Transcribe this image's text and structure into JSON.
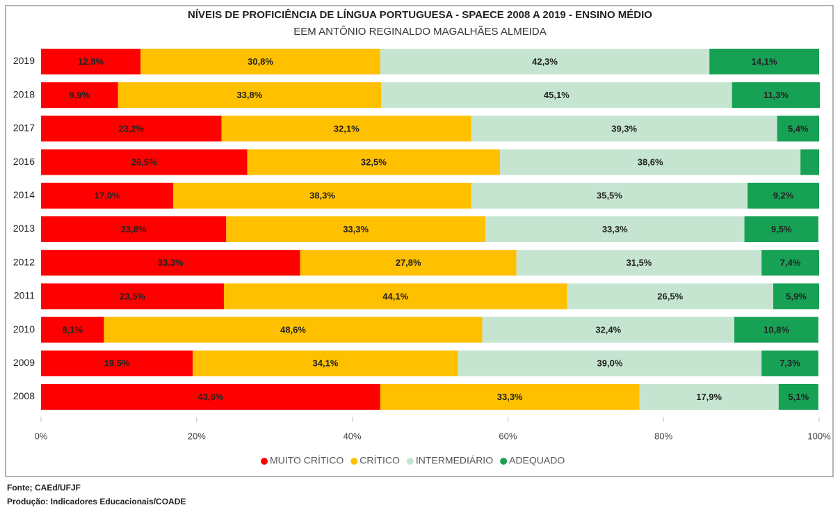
{
  "chart_data": {
    "type": "stacked-bar-horizontal",
    "title": "NÍVEIS DE PROFICIÊNCIA DE LÍNGUA PORTUGUESA - SPAECE 2008 A 2019 - ENSINO MÉDIO",
    "subtitle": "EEM ANTÔNIO REGINALDO MAGALHÃES ALMEIDA",
    "categories": [
      "2019",
      "2018",
      "2017",
      "2016",
      "2014",
      "2013",
      "2012",
      "2011",
      "2010",
      "2009",
      "2008"
    ],
    "series": [
      {
        "name": "MUITO CRÍTICO",
        "color": "#ff0000",
        "values": [
          12.8,
          9.9,
          23.2,
          26.5,
          17.0,
          23.8,
          33.3,
          23.5,
          8.1,
          19.5,
          43.6
        ],
        "value_labels": [
          "12,8%",
          "9,9%",
          "23,2%",
          "26,5%",
          "17,0%",
          "23,8%",
          "33,3%",
          "23,5%",
          "8,1%",
          "19,5%",
          "43,6%"
        ]
      },
      {
        "name": "CRÍTICO",
        "color": "#ffc000",
        "values": [
          30.8,
          33.8,
          32.1,
          32.5,
          38.3,
          33.3,
          27.8,
          44.1,
          48.6,
          34.1,
          33.3
        ],
        "value_labels": [
          "30,8%",
          "33,8%",
          "32,1%",
          "32,5%",
          "38,3%",
          "33,3%",
          "27,8%",
          "44,1%",
          "48,6%",
          "34,1%",
          "33,3%"
        ]
      },
      {
        "name": "INTERMEDIÁRIO",
        "color": "#c5e5d1",
        "values": [
          42.3,
          45.1,
          39.3,
          38.6,
          35.5,
          33.3,
          31.5,
          26.5,
          32.4,
          39.0,
          17.9
        ],
        "value_labels": [
          "42,3%",
          "45,1%",
          "39,3%",
          "38,6%",
          "35,5%",
          "33,3%",
          "31,5%",
          "26,5%",
          "32,4%",
          "39,0%",
          "17,9%"
        ]
      },
      {
        "name": "ADEQUADO",
        "color": "#17a155",
        "values": [
          14.1,
          11.3,
          5.4,
          2.4,
          9.2,
          9.5,
          7.4,
          5.9,
          10.8,
          7.3,
          5.1
        ],
        "value_labels": [
          "14,1%",
          "11,3%",
          "5,4%",
          null,
          "9,2%",
          "9,5%",
          "7,4%",
          "5,9%",
          "10,8%",
          "7,3%",
          "5,1%"
        ]
      }
    ],
    "xlim": [
      0,
      100
    ],
    "xticks": [
      {
        "value": 0,
        "label": "0%"
      },
      {
        "value": 20,
        "label": "20%"
      },
      {
        "value": 40,
        "label": "40%"
      },
      {
        "value": 60,
        "label": "60%"
      },
      {
        "value": 80,
        "label": "80%"
      },
      {
        "value": 100,
        "label": "100%"
      }
    ],
    "legend": "bottom"
  },
  "footer": [
    "Fonte; CAEd/UFJF",
    "Produção: Indicadores Educacionais/COADE"
  ]
}
